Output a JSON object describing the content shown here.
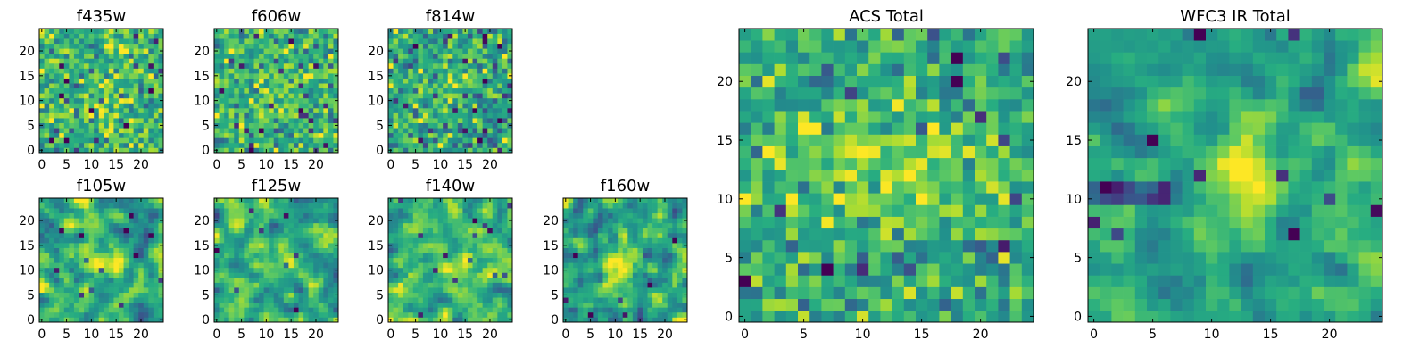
{
  "figure": {
    "colormap": "viridis",
    "colormap_stops": [
      "#440154",
      "#3b528b",
      "#21918c",
      "#5ec962",
      "#fde725"
    ]
  },
  "chart_data": [
    {
      "type": "heatmap",
      "title": "f435w",
      "grid_size": 25,
      "x_ticks": [
        "0",
        "5",
        "10",
        "15",
        "20"
      ],
      "y_ticks": [
        "0",
        "5",
        "10",
        "15",
        "20"
      ],
      "appearance": "noisy, mostly green-yellow, few dark pixels"
    },
    {
      "type": "heatmap",
      "title": "f606w",
      "grid_size": 25,
      "x_ticks": [
        "0",
        "5",
        "10",
        "15",
        "20"
      ],
      "y_ticks": [
        "0",
        "5",
        "10",
        "15",
        "20"
      ],
      "appearance": "noisy, green-yellow with slight central brightening"
    },
    {
      "type": "heatmap",
      "title": "f814w",
      "grid_size": 25,
      "x_ticks": [
        "0",
        "5",
        "10",
        "15",
        "20"
      ],
      "y_ticks": [
        "0",
        "5",
        "10",
        "15",
        "20"
      ],
      "appearance": "noisy, bright yellow source near center (~12, 12)"
    },
    {
      "type": "heatmap",
      "title": "f105w",
      "grid_size": 25,
      "x_ticks": [
        "0",
        "5",
        "10",
        "15",
        "20"
      ],
      "y_ticks": [
        "0",
        "5",
        "10",
        "15",
        "20"
      ],
      "appearance": "smoother, central source, dark patches upper-left"
    },
    {
      "type": "heatmap",
      "title": "f125w",
      "grid_size": 25,
      "x_ticks": [
        "0",
        "5",
        "10",
        "15",
        "20"
      ],
      "y_ticks": [
        "0",
        "5",
        "10",
        "15",
        "20"
      ],
      "appearance": "smoother, central source, dark pixels lower edge"
    },
    {
      "type": "heatmap",
      "title": "f140w",
      "grid_size": 25,
      "x_ticks": [
        "0",
        "5",
        "10",
        "15",
        "20"
      ],
      "y_ticks": [
        "0",
        "5",
        "10",
        "15",
        "20"
      ],
      "appearance": "smooth, yellow-green, central source"
    },
    {
      "type": "heatmap",
      "title": "f160w",
      "grid_size": 25,
      "x_ticks": [
        "0",
        "5",
        "10",
        "15",
        "20"
      ],
      "y_ticks": [
        "0",
        "5",
        "10",
        "15",
        "20"
      ],
      "appearance": "smooth, compact yellow source at center (~12, 11)"
    },
    {
      "type": "heatmap",
      "title": "ACS Total",
      "grid_size": 25,
      "x_ticks": [
        "0",
        "5",
        "10",
        "15",
        "20"
      ],
      "y_ticks": [
        "0",
        "5",
        "10",
        "15",
        "20"
      ],
      "appearance": "noisy green-yellow, elongated bright band at y~11-13"
    },
    {
      "type": "heatmap",
      "title": "WFC3 IR Total",
      "grid_size": 25,
      "x_ticks": [
        "0",
        "5",
        "10",
        "15",
        "20"
      ],
      "y_ticks": [
        "0",
        "5",
        "10",
        "15",
        "20"
      ],
      "appearance": "smooth, bright yellow source at (~13, 12), dark band at y~11 left"
    }
  ]
}
